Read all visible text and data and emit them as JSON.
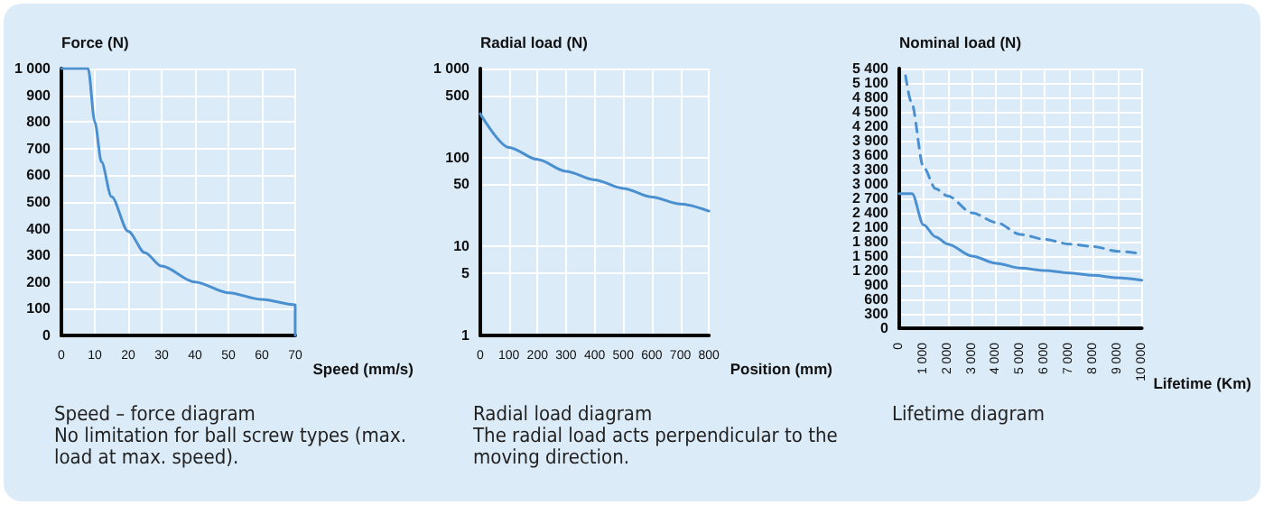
{
  "chart_data": [
    {
      "type": "line",
      "ylabel": "Force (N)",
      "xlabel": "Speed (mm/s)",
      "annotations": [
        "Speed – force diagram",
        "No limitation for ball screw types (max. load at max. speed)."
      ],
      "x": [
        0,
        8,
        10,
        12,
        15,
        20,
        25,
        30,
        40,
        50,
        60,
        70,
        70
      ],
      "series": [
        {
          "color": "#4a90d0",
          "values": [
            1000,
            1000,
            800,
            650,
            520,
            390,
            310,
            260,
            200,
            160,
            135,
            115,
            0
          ]
        }
      ],
      "xlim": [
        0,
        70
      ],
      "xticks": [
        0,
        10,
        20,
        30,
        40,
        50,
        60,
        70
      ],
      "ylim": [
        0,
        1000
      ],
      "yticks": [
        0,
        100,
        200,
        300,
        400,
        500,
        600,
        700,
        800,
        900,
        {
          "value": 1000,
          "label": "1 000"
        }
      ],
      "grid": true,
      "marker": "none",
      "line_style": "solid"
    },
    {
      "type": "line",
      "ylabel": "Radial load (N)",
      "xlabel": "Position (mm)",
      "annotations": [
        "Radial load diagram",
        "The radial load acts perpendicular to the moving direction."
      ],
      "x": [
        0,
        100,
        200,
        300,
        400,
        500,
        600,
        700,
        800
      ],
      "series": [
        {
          "color": "#4a90d0",
          "values": [
            310,
            130,
            95,
            70,
            56,
            45,
            36,
            30,
            25
          ]
        }
      ],
      "xlim": [
        0,
        800
      ],
      "xticks": [
        0,
        100,
        200,
        300,
        400,
        500,
        600,
        700,
        800
      ],
      "ylim": [
        1,
        1000
      ],
      "yticks": [
        1,
        5,
        10,
        50,
        100,
        500,
        {
          "value": 1000,
          "label": "1 000"
        }
      ],
      "log": "y",
      "grid": true,
      "marker": "none",
      "line_style": "solid"
    },
    {
      "type": "line",
      "ylabel": "Nominal load (N)",
      "xlabel": "Lifetime (Km)",
      "annotations": [
        "Lifetime diagram"
      ],
      "series": [
        {
          "color": "#4a90d0",
          "line_style": "dashed",
          "x": [
            260,
            500,
            1000,
            1500,
            2000,
            3000,
            4000,
            5000,
            6000,
            7000,
            8000,
            9000,
            10000
          ],
          "values": [
            5250,
            4700,
            3350,
            2900,
            2750,
            2400,
            2200,
            1950,
            1850,
            1750,
            1700,
            1600,
            1550
          ]
        },
        {
          "color": "#4a90d0",
          "line_style": "solid",
          "x": [
            0,
            530,
            1000,
            1500,
            2000,
            3000,
            4000,
            5000,
            6000,
            7000,
            8000,
            9000,
            10000
          ],
          "values": [
            2800,
            2800,
            2150,
            1900,
            1750,
            1500,
            1350,
            1250,
            1200,
            1150,
            1100,
            1050,
            1000
          ]
        }
      ],
      "xlim": [
        0,
        10000
      ],
      "xticks": [
        0,
        {
          "value": 1000,
          "label": "1 000"
        },
        {
          "value": 2000,
          "label": "2 000"
        },
        {
          "value": 3000,
          "label": "3 000"
        },
        {
          "value": 4000,
          "label": "4 000"
        },
        {
          "value": 5000,
          "label": "5 000"
        },
        {
          "value": 6000,
          "label": "6 000"
        },
        {
          "value": 7000,
          "label": "7 000"
        },
        {
          "value": 8000,
          "label": "8 000"
        },
        {
          "value": 9000,
          "label": "9 000"
        },
        {
          "value": 10000,
          "label": "10 000"
        }
      ],
      "ylim": [
        0,
        5400
      ],
      "yticks": [
        0,
        300,
        600,
        900,
        {
          "value": 1200,
          "label": "1 200"
        },
        {
          "value": 1500,
          "label": "1 500"
        },
        {
          "value": 1800,
          "label": "1 800"
        },
        {
          "value": 2100,
          "label": "2 100"
        },
        {
          "value": 2400,
          "label": "2 400"
        },
        {
          "value": 2700,
          "label": "2 700"
        },
        {
          "value": 3000,
          "label": "3 000"
        },
        {
          "value": 3300,
          "label": "3 300"
        },
        {
          "value": 3600,
          "label": "3 600"
        },
        {
          "value": 3900,
          "label": "3 900"
        },
        {
          "value": 4200,
          "label": "4 200"
        },
        {
          "value": 4500,
          "label": "4 500"
        },
        {
          "value": 4800,
          "label": "4 800"
        },
        {
          "value": 5100,
          "label": "5 100"
        },
        {
          "value": 5400,
          "label": "5 400"
        }
      ],
      "grid": true,
      "marker": "none"
    }
  ]
}
